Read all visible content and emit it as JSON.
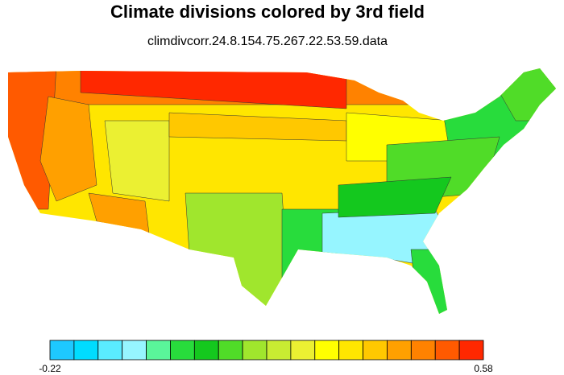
{
  "title": "Climate divisions colored by 3rd field",
  "subtitle": "climdivcorr.24.8.154.75.267.22.53.59.data",
  "colorbar": {
    "range": [
      -0.22,
      0.58
    ],
    "colors": [
      "#1ec8ff",
      "#00dcff",
      "#5aebff",
      "#96f5ff",
      "#5af59a",
      "#28dc3c",
      "#14c81e",
      "#50dc28",
      "#a0e62d",
      "#c8eb32",
      "#ebf032",
      "#ffff00",
      "#ffe600",
      "#ffc800",
      "#ffa000",
      "#ff8200",
      "#ff5a00",
      "#ff2800"
    ]
  }
}
